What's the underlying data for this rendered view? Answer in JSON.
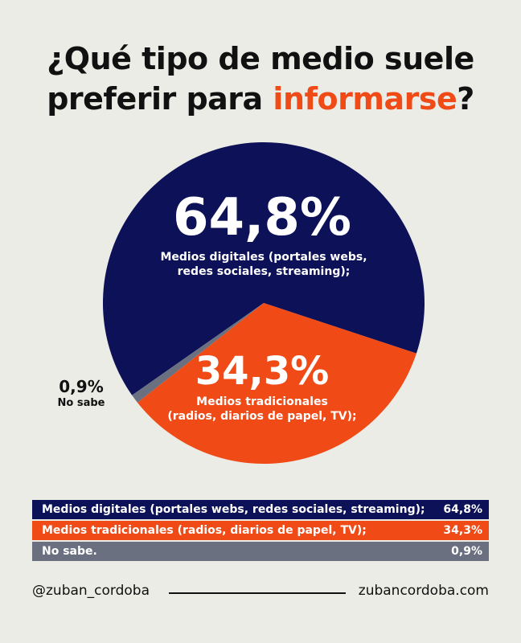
{
  "title": {
    "line1": "¿Qué tipo de medio suele",
    "line2_pre": "preferir para ",
    "line2_accent": "informarse",
    "line2_post": "?"
  },
  "colors": {
    "digital": "#0c1158",
    "traditional": "#f04a16",
    "no_sabe": "#6b7080",
    "background": "#ebece6"
  },
  "chart_data": {
    "type": "pie",
    "slices": [
      {
        "name": "Medios digitales (portales webs, redes sociales, streaming);",
        "value": 64.8,
        "label": "64,8%",
        "label_lines": [
          "Medios digitales (portales webs,",
          "redes sociales, streaming);"
        ]
      },
      {
        "name": "Medios tradicionales (radios, diarios de papel, TV);",
        "value": 34.3,
        "label": "34,3%",
        "label_lines": [
          "Medios tradicionales",
          "(radios, diarios de papel, TV);"
        ]
      },
      {
        "name": "No sabe",
        "value": 0.9,
        "label": "0,9%",
        "label_lines": [
          "No sabe"
        ]
      }
    ]
  },
  "table": {
    "rows": [
      {
        "label": "Medios digitales (portales webs, redes sociales, streaming);",
        "value": "64,8%"
      },
      {
        "label": "Medios tradicionales (radios, diarios de papel, TV);",
        "value": "34,3%"
      },
      {
        "label": "No sabe.",
        "value": "0,9%"
      }
    ]
  },
  "footer": {
    "handle": "@zuban_cordoba",
    "website": "zubancordoba.com"
  }
}
